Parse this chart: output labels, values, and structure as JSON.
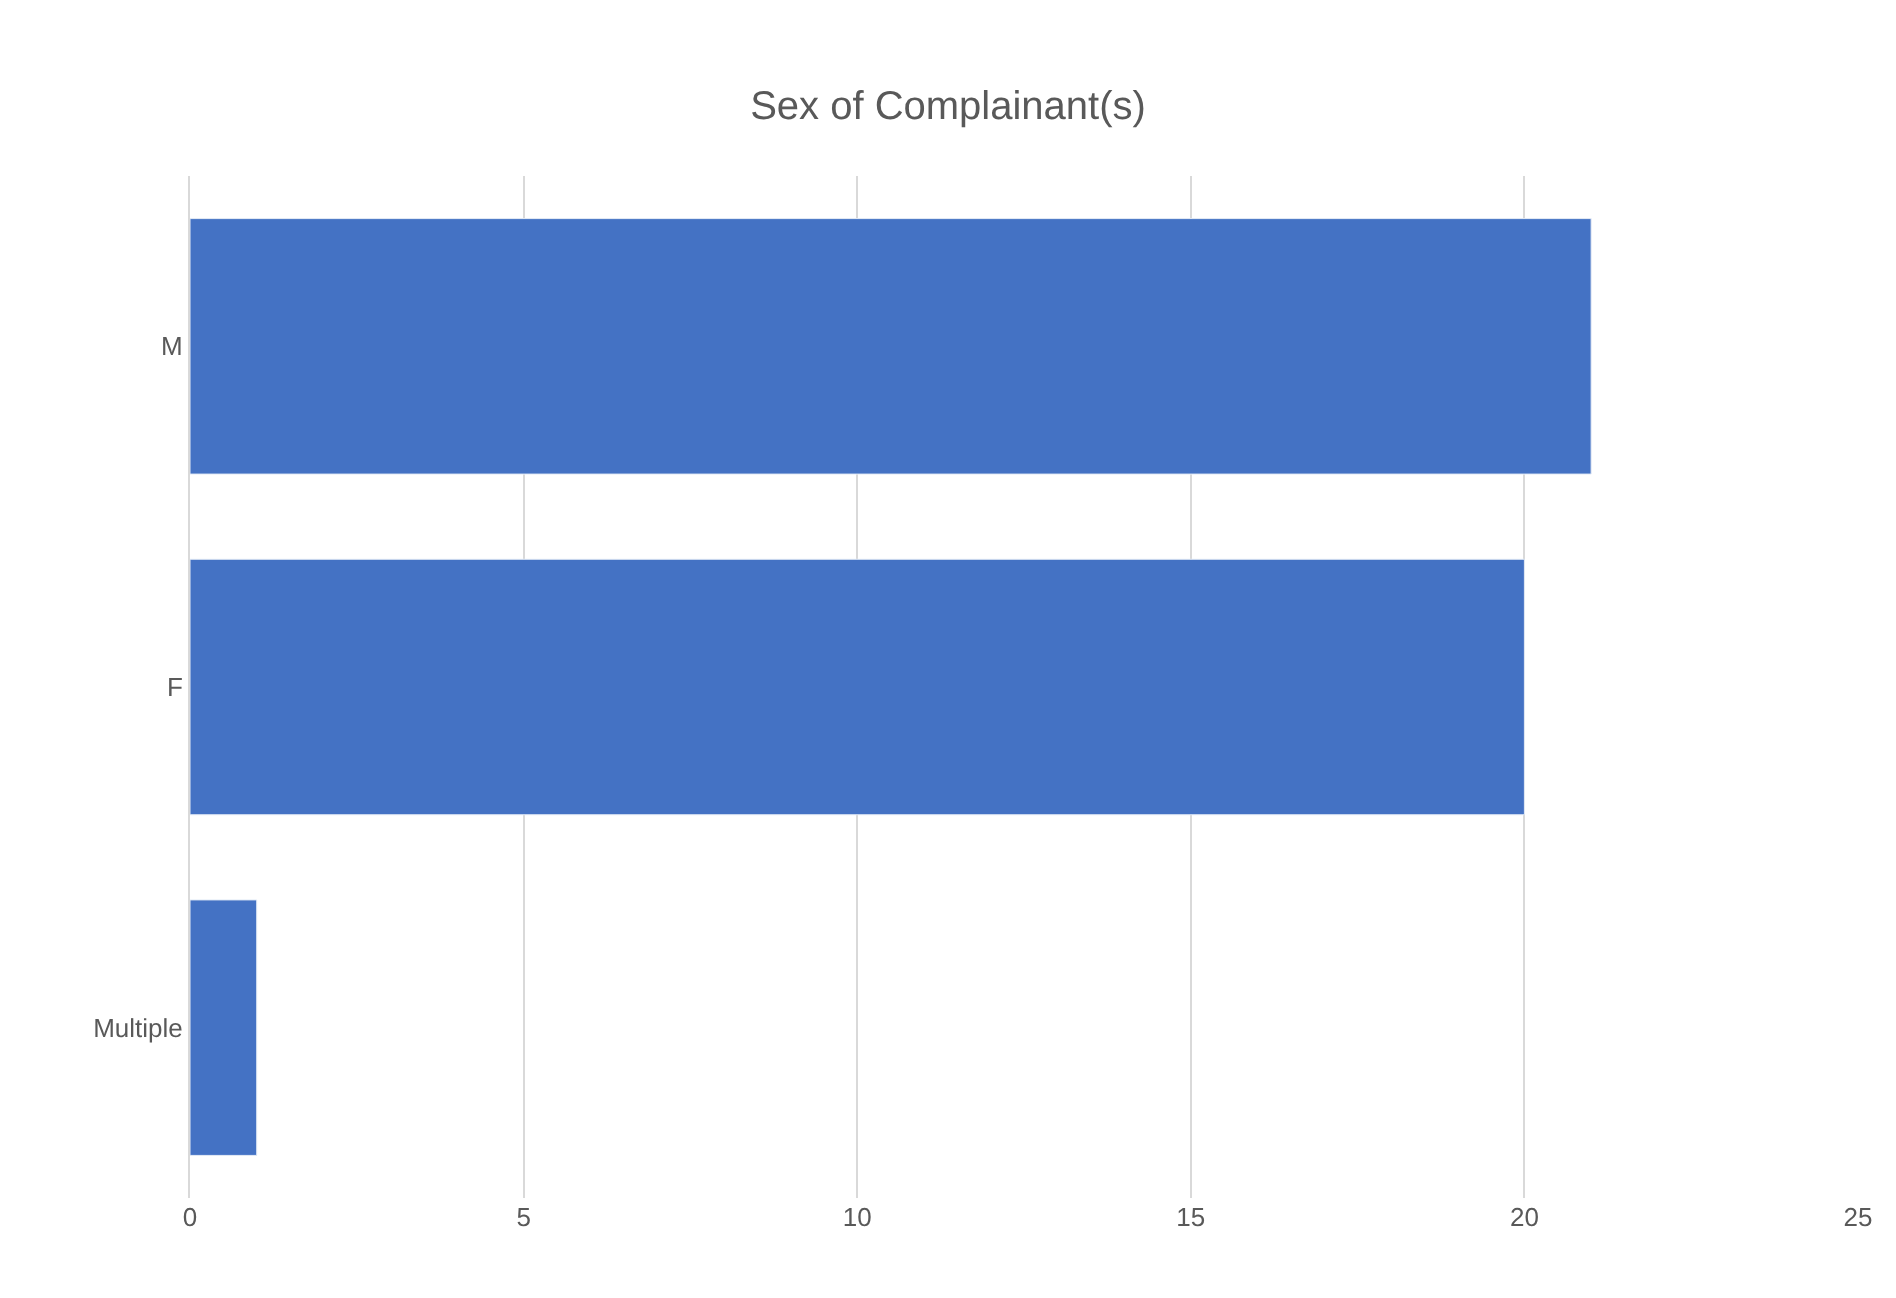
{
  "chart_data": {
    "type": "bar",
    "orientation": "horizontal",
    "title": "Sex of Complainant(s)",
    "categories": [
      "M",
      "F",
      "Multiple"
    ],
    "values": [
      21,
      20,
      1
    ],
    "color": "#4472c4",
    "xlim": [
      0,
      25
    ],
    "xticks": [
      0,
      5,
      10,
      15,
      20,
      25
    ],
    "grid": "x"
  }
}
